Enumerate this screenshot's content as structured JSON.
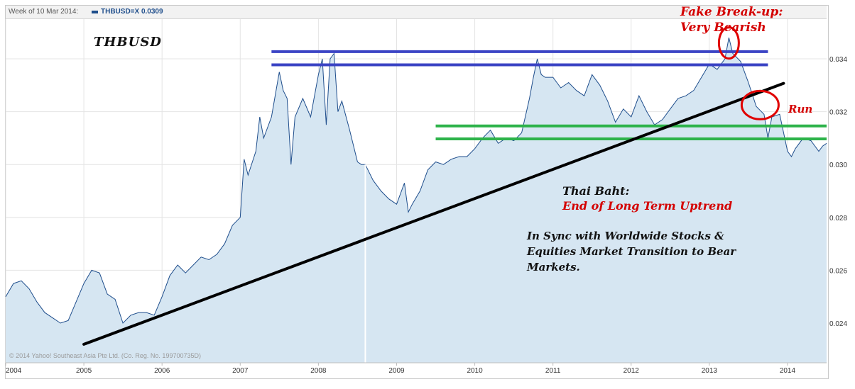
{
  "legend": {
    "date": "Week of 10 Mar 2014:",
    "series": "THBUSD=X 0.0309",
    "series_color": "#1f4e8c"
  },
  "copyright": "© 2014 Yahoo! Southeast Asia Pte Ltd. (Co. Reg. No. 199700735D)",
  "annotations": {
    "title": "THBUSD",
    "fake_breakup_line1": "Fake Break-up:",
    "fake_breakup_line2": "Very Bearish",
    "run": "Run",
    "thai_baht": "Thai Baht:",
    "end_uptrend": "End of Long Term Uptrend",
    "sync": "In Sync with Worldwide Stocks & Equities Market Transition to Bear Markets."
  },
  "colors": {
    "area_fill": "#d6e6f2",
    "line": "#1f4e8c",
    "resistance": "#3a43c4",
    "support": "#2db34a",
    "trendline": "#000000",
    "highlight": "#e00000"
  },
  "chart_data": {
    "type": "area",
    "title": "THBUSD",
    "xlabel": "",
    "ylabel": "",
    "x_ticks": [
      "2004",
      "2005",
      "2006",
      "2007",
      "2008",
      "2009",
      "2010",
      "2011",
      "2012",
      "2013",
      "2014"
    ],
    "y_ticks": [
      "0.024",
      "0.026",
      "0.028",
      "0.030",
      "0.032",
      "0.034"
    ],
    "xlim": [
      2004.0,
      2014.5
    ],
    "ylim": [
      0.0225,
      0.0355
    ],
    "grid": true,
    "y_axis_position": "right",
    "series": [
      {
        "points": [
          [
            2004.0,
            0.025
          ],
          [
            2004.1,
            0.0255
          ],
          [
            2004.2,
            0.0256
          ],
          [
            2004.3,
            0.0253
          ],
          [
            2004.4,
            0.0248
          ],
          [
            2004.5,
            0.0244
          ],
          [
            2004.6,
            0.0242
          ],
          [
            2004.7,
            0.024
          ],
          [
            2004.8,
            0.0241
          ],
          [
            2004.9,
            0.0248
          ],
          [
            2005.0,
            0.0255
          ],
          [
            2005.1,
            0.026
          ],
          [
            2005.2,
            0.0259
          ],
          [
            2005.3,
            0.0251
          ],
          [
            2005.4,
            0.0249
          ],
          [
            2005.5,
            0.024
          ],
          [
            2005.6,
            0.0243
          ],
          [
            2005.7,
            0.0244
          ],
          [
            2005.8,
            0.0244
          ],
          [
            2005.9,
            0.0243
          ],
          [
            2006.0,
            0.025
          ],
          [
            2006.1,
            0.0258
          ],
          [
            2006.2,
            0.0262
          ],
          [
            2006.3,
            0.0259
          ],
          [
            2006.4,
            0.0262
          ],
          [
            2006.5,
            0.0265
          ],
          [
            2006.6,
            0.0264
          ],
          [
            2006.7,
            0.0266
          ],
          [
            2006.8,
            0.027
          ],
          [
            2006.9,
            0.0277
          ],
          [
            2007.0,
            0.028
          ],
          [
            2007.05,
            0.0302
          ],
          [
            2007.1,
            0.0296
          ],
          [
            2007.2,
            0.0305
          ],
          [
            2007.25,
            0.0318
          ],
          [
            2007.3,
            0.031
          ],
          [
            2007.4,
            0.0318
          ],
          [
            2007.5,
            0.0335
          ],
          [
            2007.55,
            0.0328
          ],
          [
            2007.6,
            0.0325
          ],
          [
            2007.65,
            0.03
          ],
          [
            2007.7,
            0.0318
          ],
          [
            2007.8,
            0.0325
          ],
          [
            2007.9,
            0.0318
          ],
          [
            2008.0,
            0.0334
          ],
          [
            2008.05,
            0.034
          ],
          [
            2008.1,
            0.0315
          ],
          [
            2008.15,
            0.034
          ],
          [
            2008.2,
            0.0342
          ],
          [
            2008.25,
            0.032
          ],
          [
            2008.3,
            0.0324
          ],
          [
            2008.4,
            0.0313
          ],
          [
            2008.5,
            0.0301
          ],
          [
            2008.55,
            0.03
          ],
          [
            2008.6,
            0.03
          ],
          [
            2008.7,
            0.0294
          ],
          [
            2008.8,
            0.029
          ],
          [
            2008.9,
            0.0287
          ],
          [
            2009.0,
            0.0285
          ],
          [
            2009.1,
            0.0293
          ],
          [
            2009.15,
            0.0282
          ],
          [
            2009.2,
            0.0285
          ],
          [
            2009.3,
            0.029
          ],
          [
            2009.4,
            0.0298
          ],
          [
            2009.5,
            0.0301
          ],
          [
            2009.6,
            0.03
          ],
          [
            2009.7,
            0.0302
          ],
          [
            2009.8,
            0.0303
          ],
          [
            2009.9,
            0.0303
          ],
          [
            2010.0,
            0.0306
          ],
          [
            2010.1,
            0.031
          ],
          [
            2010.2,
            0.0313
          ],
          [
            2010.3,
            0.0308
          ],
          [
            2010.4,
            0.031
          ],
          [
            2010.5,
            0.0309
          ],
          [
            2010.6,
            0.0312
          ],
          [
            2010.7,
            0.0325
          ],
          [
            2010.75,
            0.0333
          ],
          [
            2010.8,
            0.034
          ],
          [
            2010.85,
            0.0334
          ],
          [
            2010.9,
            0.0333
          ],
          [
            2011.0,
            0.0333
          ],
          [
            2011.1,
            0.0329
          ],
          [
            2011.2,
            0.0331
          ],
          [
            2011.3,
            0.0328
          ],
          [
            2011.4,
            0.0326
          ],
          [
            2011.5,
            0.0334
          ],
          [
            2011.6,
            0.033
          ],
          [
            2011.7,
            0.0324
          ],
          [
            2011.8,
            0.0316
          ],
          [
            2011.9,
            0.0321
          ],
          [
            2012.0,
            0.0318
          ],
          [
            2012.1,
            0.0326
          ],
          [
            2012.2,
            0.032
          ],
          [
            2012.3,
            0.0315
          ],
          [
            2012.4,
            0.0317
          ],
          [
            2012.5,
            0.0321
          ],
          [
            2012.6,
            0.0325
          ],
          [
            2012.7,
            0.0326
          ],
          [
            2012.8,
            0.0328
          ],
          [
            2012.9,
            0.0333
          ],
          [
            2013.0,
            0.0338
          ],
          [
            2013.1,
            0.0336
          ],
          [
            2013.2,
            0.034
          ],
          [
            2013.25,
            0.0348
          ],
          [
            2013.3,
            0.0342
          ],
          [
            2013.4,
            0.0339
          ],
          [
            2013.5,
            0.0331
          ],
          [
            2013.6,
            0.0322
          ],
          [
            2013.7,
            0.0319
          ],
          [
            2013.75,
            0.031
          ],
          [
            2013.8,
            0.0318
          ],
          [
            2013.9,
            0.0319
          ],
          [
            2014.0,
            0.0305
          ],
          [
            2014.05,
            0.0303
          ],
          [
            2014.1,
            0.0306
          ],
          [
            2014.2,
            0.031
          ],
          [
            2014.3,
            0.0309
          ],
          [
            2014.4,
            0.0305
          ],
          [
            2014.45,
            0.0307
          ],
          [
            2014.5,
            0.0308
          ]
        ]
      }
    ],
    "overlays": [
      {
        "kind": "resistance",
        "y": 0.03427,
        "x_from": 2007.4,
        "x_to": 2013.75
      },
      {
        "kind": "resistance",
        "y": 0.03377,
        "x_from": 2007.4,
        "x_to": 2013.75
      },
      {
        "kind": "support",
        "y": 0.03146,
        "x_from": 2009.5,
        "x_to": 2014.5
      },
      {
        "kind": "support",
        "y": 0.03097,
        "x_from": 2009.5,
        "x_to": 2014.5
      },
      {
        "kind": "trendline",
        "x1": 2005.0,
        "y1": 0.0232,
        "x2": 2013.95,
        "y2": 0.03307
      }
    ],
    "highlights": [
      {
        "x": 2013.25,
        "y": 0.0346
      },
      {
        "x": 2013.65,
        "y": 0.03225
      }
    ]
  }
}
